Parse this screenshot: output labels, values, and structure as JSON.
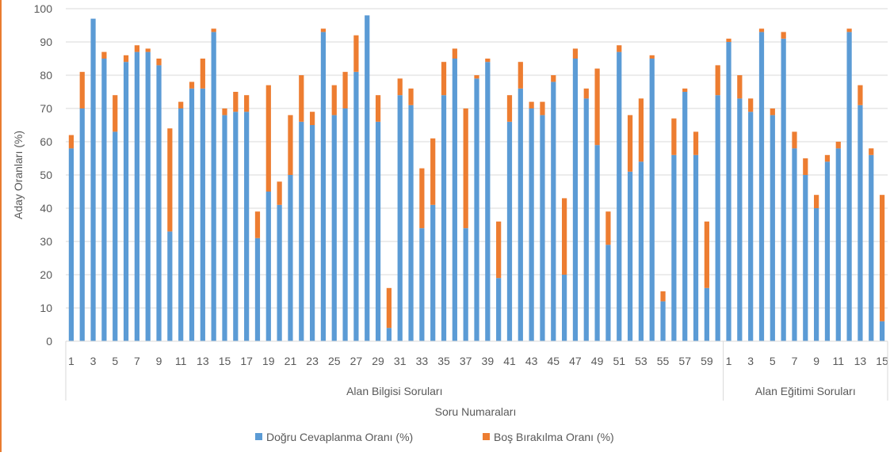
{
  "chart_data": {
    "type": "bar",
    "stacked": true,
    "title": "",
    "xlabel": "Soru Numaraları",
    "ylabel": "Aday Oranları (%)",
    "ylim": [
      0,
      100
    ],
    "yticks": [
      0,
      10,
      20,
      30,
      40,
      50,
      60,
      70,
      80,
      90,
      100
    ],
    "grid": true,
    "legend_position": "bottom",
    "groups": [
      {
        "name": "Alan Bilgisi Soruları",
        "categories": [
          "1",
          "2",
          "3",
          "4",
          "5",
          "6",
          "7",
          "8",
          "9",
          "10",
          "11",
          "12",
          "13",
          "14",
          "15",
          "16",
          "17",
          "18",
          "19",
          "20",
          "21",
          "22",
          "23",
          "24",
          "25",
          "26",
          "27",
          "28",
          "29",
          "30",
          "31",
          "32",
          "33",
          "34",
          "35",
          "36",
          "37",
          "38",
          "39",
          "40",
          "41",
          "42",
          "43",
          "44",
          "45",
          "46",
          "47",
          "48",
          "49",
          "50",
          "51",
          "52",
          "53",
          "54",
          "55",
          "56",
          "57",
          "58",
          "59",
          "60"
        ],
        "tick_labels": [
          "1",
          "3",
          "5",
          "7",
          "9",
          "11",
          "13",
          "15",
          "17",
          "19",
          "21",
          "23",
          "25",
          "27",
          "29",
          "31",
          "33",
          "35",
          "37",
          "39",
          "41",
          "43",
          "45",
          "47",
          "49",
          "51",
          "53",
          "55",
          "57",
          "59"
        ],
        "dogru": [
          58,
          70,
          97,
          85,
          63,
          84,
          87,
          87,
          83,
          33,
          70,
          76,
          76,
          93,
          68,
          69,
          69,
          31,
          45,
          41,
          50,
          66,
          65,
          93,
          68,
          70,
          81,
          98,
          66,
          4,
          74,
          71,
          34,
          41,
          74,
          85,
          34,
          79,
          84,
          19,
          66,
          76,
          70,
          68,
          78,
          20,
          85,
          73,
          59,
          29,
          87,
          51,
          54,
          85,
          12,
          56,
          75,
          56,
          16,
          74
        ],
        "bos": [
          4,
          11,
          0,
          2,
          11,
          2,
          2,
          1,
          2,
          31,
          2,
          2,
          9,
          1,
          2,
          6,
          5,
          8,
          32,
          7,
          18,
          14,
          4,
          1,
          9,
          11,
          11,
          0,
          8,
          12,
          5,
          5,
          18,
          20,
          10,
          3,
          36,
          1,
          1,
          17,
          8,
          8,
          2,
          4,
          2,
          23,
          3,
          3,
          23,
          10,
          2,
          17,
          19,
          1,
          3,
          11,
          1,
          7,
          20,
          9
        ]
      },
      {
        "name": "Alan Eğitimi Soruları",
        "categories": [
          "1",
          "2",
          "3",
          "4",
          "5",
          "6",
          "7",
          "8",
          "9",
          "10",
          "11",
          "12",
          "13",
          "14",
          "15"
        ],
        "tick_labels": [
          "1",
          "3",
          "5",
          "7",
          "9",
          "11",
          "13",
          "15"
        ],
        "dogru": [
          90,
          73,
          69,
          93,
          68,
          91,
          58,
          50,
          40,
          54,
          58,
          93,
          71,
          56,
          6
        ],
        "bos": [
          1,
          7,
          4,
          1,
          2,
          2,
          5,
          5,
          4,
          2,
          2,
          1,
          6,
          2,
          38
        ]
      }
    ],
    "series": [
      {
        "name": "Doğru Cevaplanma Oranı (%)",
        "key": "dogru",
        "color": "#5b9bd5"
      },
      {
        "name": "Boş Bırakılma Oranı (%)",
        "key": "bos",
        "color": "#ed7d31"
      }
    ],
    "colors": {
      "grid": "#d9d9d9",
      "text": "#595959",
      "axis": "#d9d9d9"
    }
  }
}
